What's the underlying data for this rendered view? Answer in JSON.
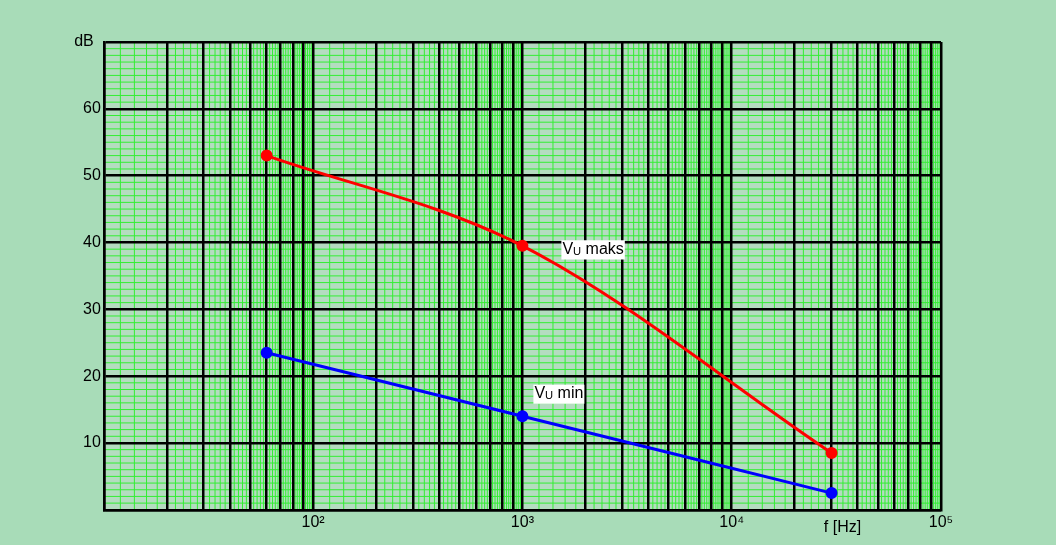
{
  "chart_data": {
    "type": "line",
    "xlabel": "f [Hz]",
    "ylabel": "dB",
    "log": "x",
    "xlim": [
      10,
      100000
    ],
    "xticks": [
      {
        "value": 10,
        "label": null
      },
      {
        "value": 20,
        "label": null
      },
      {
        "value": 30,
        "label": null
      },
      {
        "value": 40,
        "label": null
      },
      {
        "value": 50,
        "label": null
      },
      {
        "value": 60,
        "label": null
      },
      {
        "value": 70,
        "label": null
      },
      {
        "value": 80,
        "label": null
      },
      {
        "value": 90,
        "label": null
      },
      {
        "value": 100,
        "label": "10²"
      },
      {
        "value": 200,
        "label": null
      },
      {
        "value": 300,
        "label": null
      },
      {
        "value": 400,
        "label": null
      },
      {
        "value": 500,
        "label": null
      },
      {
        "value": 600,
        "label": null
      },
      {
        "value": 700,
        "label": null
      },
      {
        "value": 800,
        "label": null
      },
      {
        "value": 900,
        "label": null
      },
      {
        "value": 1000,
        "label": "10³"
      },
      {
        "value": 2000,
        "label": null
      },
      {
        "value": 3000,
        "label": null
      },
      {
        "value": 4000,
        "label": null
      },
      {
        "value": 5000,
        "label": null
      },
      {
        "value": 6000,
        "label": null
      },
      {
        "value": 7000,
        "label": null
      },
      {
        "value": 8000,
        "label": null
      },
      {
        "value": 9000,
        "label": null
      },
      {
        "value": 10000,
        "label": "10⁴"
      },
      {
        "value": 20000,
        "label": null
      },
      {
        "value": 30000,
        "label": null
      },
      {
        "value": 40000,
        "label": null
      },
      {
        "value": 50000,
        "label": null
      },
      {
        "value": 60000,
        "label": null
      },
      {
        "value": 70000,
        "label": null
      },
      {
        "value": 80000,
        "label": null
      },
      {
        "value": 90000,
        "label": null
      },
      {
        "value": 100000,
        "label": "10⁵"
      }
    ],
    "ylim": [
      0,
      70
    ],
    "yticks": [
      {
        "value": 0,
        "label": null
      },
      10,
      20,
      30,
      40,
      50,
      60,
      {
        "value": 70,
        "label": null
      }
    ],
    "x": [
      60,
      1000,
      30000
    ],
    "series": [
      {
        "name": "V$_{U}$ maks",
        "color": "#ff0000",
        "values": [
          53,
          39.5,
          8.5
        ]
      },
      {
        "name": "V$_{U}$ min",
        "color": "#0000ff",
        "values": [
          23.5,
          14,
          2.5
        ]
      }
    ],
    "grid": true,
    "legend": false,
    "marker": "circle",
    "line_style": "solid"
  }
}
